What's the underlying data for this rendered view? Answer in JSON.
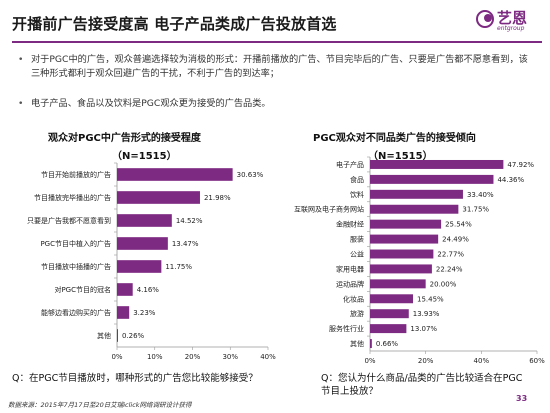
{
  "title": "开播前广告接受度高  电子产品类成广告投放首选",
  "logo": {
    "text": "艺恩",
    "sub": "entgroup"
  },
  "bullets": [
    "对于PGC中的广告，观众普遍选择较为消极的形式：开播前播放的广告、节目完毕后的广告、只要是广告都不愿意看到，该三种形式都利于观众回避广告的干扰，不利于广告的到达率；",
    "电子产品、食品以及饮料是PGC观众更为接受的广告品类。"
  ],
  "bullet_symbol": "•",
  "colors": {
    "bar": "#7d2a82",
    "accent": "#7d2a82"
  },
  "chart_data": [
    {
      "type": "bar",
      "orientation": "horizontal",
      "title": "观众对PGC中广告形式的接受程度",
      "subtitle": "（N=1515）",
      "categories": [
        "节目开始前播放的广告",
        "节目播放完毕播出的广告",
        "只要是广告我都不愿意看到",
        "PGC节目中植入的广告",
        "节目播放中插播的广告",
        "对PGC节目的冠名",
        "能够边看边购买的广告",
        "其他"
      ],
      "values": [
        30.63,
        21.98,
        14.52,
        13.47,
        11.75,
        4.16,
        3.23,
        0.26
      ],
      "value_labels": [
        "30.63%",
        "21.98%",
        "14.52%",
        "13.47%",
        "11.75%",
        "4.16%",
        "3.23%",
        "0.26%"
      ],
      "xlim": [
        0,
        40
      ],
      "xticks": [
        "0%",
        "10%",
        "20%",
        "30%",
        "40%"
      ],
      "xtick_values": [
        0,
        10,
        20,
        30,
        40
      ],
      "grid": false
    },
    {
      "type": "bar",
      "orientation": "horizontal",
      "title": "PGC观众对不同品类广告的接受倾向",
      "subtitle": "（N=1515）",
      "categories": [
        "电子产品",
        "食品",
        "饮料",
        "互联网及电子商务网站",
        "金融财经",
        "服装",
        "公益",
        "家用电器",
        "运动品牌",
        "化妆品",
        "旅游",
        "服务性行业",
        "其他"
      ],
      "values": [
        47.92,
        44.36,
        33.4,
        31.75,
        25.54,
        24.49,
        22.77,
        22.24,
        20.0,
        15.45,
        13.93,
        13.07,
        0.66
      ],
      "value_labels": [
        "47.92%",
        "44.36%",
        "33.40%",
        "31.75%",
        "25.54%",
        "24.49%",
        "22.77%",
        "22.24%",
        "20.00%",
        "15.45%",
        "13.93%",
        "13.07%",
        "0.66%"
      ],
      "xlim": [
        0,
        60
      ],
      "xticks": [
        "0%",
        "20%",
        "40%",
        "60%"
      ],
      "xtick_values": [
        0,
        20,
        40,
        60
      ],
      "grid": false
    }
  ],
  "questions": [
    "Q：在PGC节目播放时，哪种形式的广告您比较能够接受？",
    "Q：您认为什么商品/品类的广告比较适合在PGC节目上投放？"
  ],
  "source": "数据来源：2015年7月17日至20日艾瑞iclick网络调研设计获得",
  "page_number": "33"
}
